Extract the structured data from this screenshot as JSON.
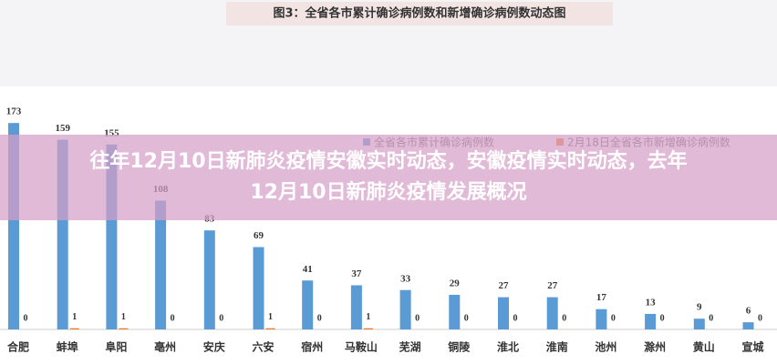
{
  "banner": "往年12月10日新肺炎疫情安徽实时动态，安徽疫情实时动态，去年12月10日新肺炎疫情发展概况",
  "chart_data": {
    "type": "bar",
    "title": "图3：全省各市累计确诊病例数和新增确诊病例数动态图",
    "categories": [
      "合肥",
      "蚌埠",
      "阜阳",
      "亳州",
      "安庆",
      "六安",
      "宿州",
      "马鞍山",
      "芜湖",
      "铜陵",
      "淮北",
      "淮南",
      "池州",
      "滁州",
      "黄山",
      "宣城"
    ],
    "series": [
      {
        "name": "全省各市累计确诊病例数",
        "color": "#5b9bd5",
        "values": [
          173,
          159,
          155,
          108,
          83,
          69,
          41,
          37,
          33,
          29,
          27,
          27,
          17,
          13,
          9,
          6
        ]
      },
      {
        "name": "2月18日全省各市新增确诊病例数",
        "color": "#ed7d31",
        "values": [
          0,
          1,
          1,
          0,
          0,
          1,
          0,
          1,
          0,
          0,
          0,
          0,
          0,
          0,
          0,
          0
        ]
      }
    ],
    "ylim": [
      0,
      180
    ]
  }
}
